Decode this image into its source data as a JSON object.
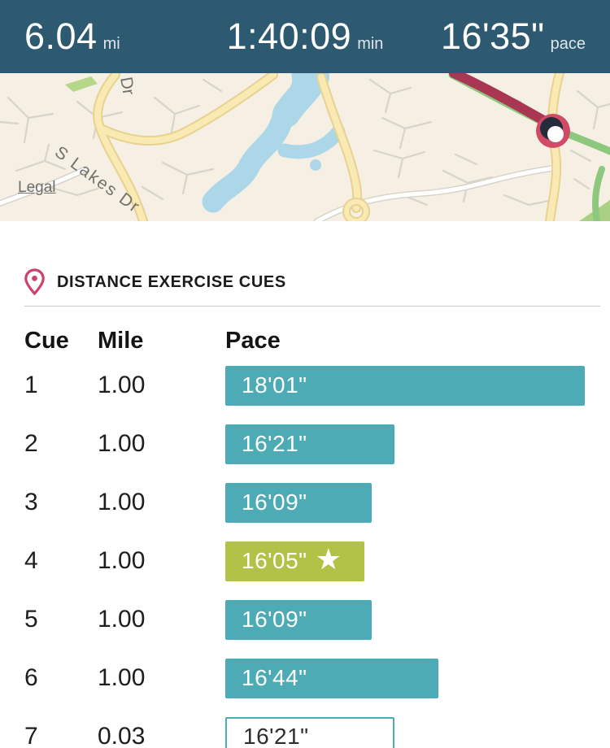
{
  "header": {
    "stats": [
      {
        "value": "6.04",
        "unit": "mi"
      },
      {
        "value": "1:40:09",
        "unit": "min"
      },
      {
        "value": "16'35\"",
        "unit": "pace"
      }
    ]
  },
  "map": {
    "legal_label": "Legal",
    "road_label_main": "S Lakes Dr",
    "road_label_secondary": "Dr"
  },
  "cues": {
    "title": "DISTANCE EXERCISE CUES",
    "columns": {
      "cue": "Cue",
      "mile": "Mile",
      "pace": "Pace"
    },
    "rows": [
      {
        "cue": "1",
        "mile": "1.00",
        "pace": "18'01\"",
        "pace_seconds": 1081,
        "variant": "solid",
        "starred": false
      },
      {
        "cue": "2",
        "mile": "1.00",
        "pace": "16'21\"",
        "pace_seconds": 981,
        "variant": "solid",
        "starred": false
      },
      {
        "cue": "3",
        "mile": "1.00",
        "pace": "16'09\"",
        "pace_seconds": 969,
        "variant": "solid",
        "starred": false
      },
      {
        "cue": "4",
        "mile": "1.00",
        "pace": "16'05\"",
        "pace_seconds": 965,
        "variant": "best",
        "starred": true
      },
      {
        "cue": "5",
        "mile": "1.00",
        "pace": "16'09\"",
        "pace_seconds": 969,
        "variant": "solid",
        "starred": false
      },
      {
        "cue": "6",
        "mile": "1.00",
        "pace": "16'44\"",
        "pace_seconds": 1004,
        "variant": "solid",
        "starred": false
      },
      {
        "cue": "7",
        "mile": "0.03",
        "pace": "16'21\"",
        "pace_seconds": 981,
        "variant": "outline",
        "starred": false
      }
    ]
  },
  "colors": {
    "header_bg": "#2d5971",
    "bar_teal": "#4dabb5",
    "bar_best_green": "#b1c246",
    "pin_pink": "#cd4269",
    "route_red": "#a93753",
    "route_green": "#8dc87e",
    "marker_ring": "#d14a66"
  },
  "chart_data": {
    "type": "bar",
    "orientation": "horizontal",
    "title": "DISTANCE EXERCISE CUES",
    "categories": [
      "1",
      "2",
      "3",
      "4",
      "5",
      "6",
      "7"
    ],
    "miles": [
      1.0,
      1.0,
      1.0,
      1.0,
      1.0,
      1.0,
      0.03
    ],
    "values_pace_labels": [
      "18'01\"",
      "16'21\"",
      "16'09\"",
      "16'05\"",
      "16'09\"",
      "16'44\"",
      "16'21\""
    ],
    "values_pace_seconds": [
      1081,
      981,
      969,
      965,
      969,
      1004,
      981
    ],
    "best_split_index": 3,
    "partial_split_index": 6,
    "grid": false,
    "legend_position": "none"
  }
}
